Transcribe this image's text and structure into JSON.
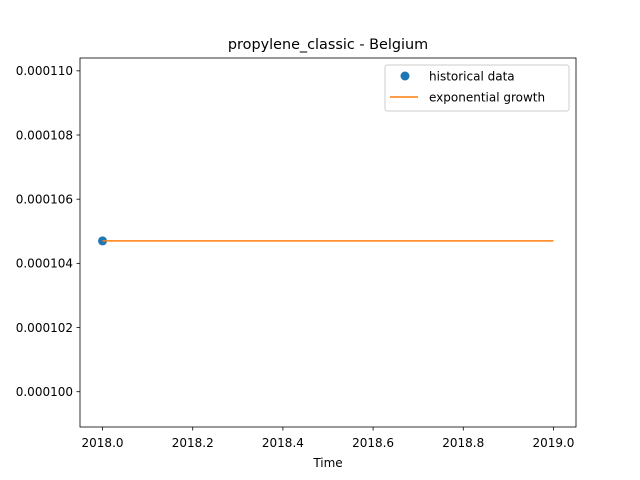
{
  "chart_data": {
    "type": "line",
    "title": "propylene_classic - Belgium",
    "xlabel": "Time",
    "ylabel": "",
    "xlim": [
      2017.95,
      2019.05
    ],
    "ylim": [
      9.89e-05,
      0.0001104
    ],
    "x_ticks": [
      2018.0,
      2018.2,
      2018.4,
      2018.6,
      2018.8,
      2019.0
    ],
    "x_tick_labels": [
      "2018.0",
      "2018.2",
      "2018.4",
      "2018.6",
      "2018.8",
      "2019.0"
    ],
    "y_ticks": [
      0.0001,
      0.000102,
      0.000104,
      0.000106,
      0.000108,
      0.00011
    ],
    "y_tick_labels": [
      "0.000100",
      "0.000102",
      "0.000104",
      "0.000106",
      "0.000108",
      "0.000110"
    ],
    "grid": false,
    "legend_position": "upper right",
    "series": [
      {
        "name": "historical data",
        "style": "scatter",
        "color": "#1f77b4",
        "x": [
          2018.0
        ],
        "y": [
          0.0001047
        ]
      },
      {
        "name": "exponential growth",
        "style": "line",
        "color": "#ff7f0e",
        "x": [
          2018.0,
          2019.0
        ],
        "y": [
          0.0001047,
          0.0001047
        ]
      }
    ]
  }
}
